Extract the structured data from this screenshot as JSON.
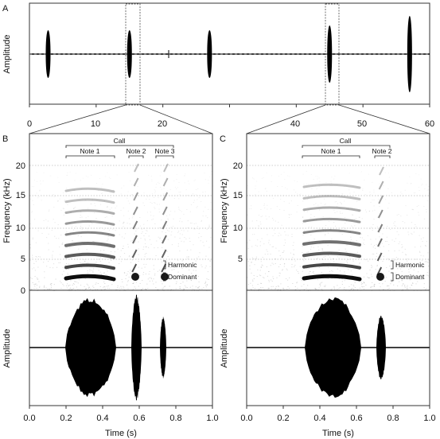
{
  "panels": {
    "A": {
      "letter": "A",
      "ylabel": "Amplitude",
      "x_ticks": [
        "0",
        "20",
        "40",
        "60"
      ],
      "x_ticks_minor": [
        "10",
        "30",
        "50"
      ],
      "xlim": [
        0,
        60
      ],
      "calls_at_s": [
        2.8,
        15.0,
        27.0,
        45.0,
        57.0
      ]
    },
    "B": {
      "letter": "B",
      "spectrogram": {
        "ylabel": "Frequency (kHz)",
        "y_ticks": [
          "20",
          "15",
          "10",
          "5",
          "0"
        ],
        "ylim": [
          0,
          22
        ],
        "annotations": {
          "call": "Call",
          "notes": [
            "Note 1",
            "Note 2",
            "Note 3"
          ],
          "harmonic": "Harmonic",
          "dominant": "Dominant"
        }
      },
      "waveform": {
        "ylabel": "Amplitude",
        "xlabel": "Time (s)",
        "x_ticks": [
          "0.0",
          "0.2",
          "0.4",
          "0.6",
          "0.8",
          "1.0"
        ]
      }
    },
    "C": {
      "letter": "C",
      "spectrogram": {
        "ylabel": "Frequency (kHz)",
        "y_ticks": [
          "20",
          "15",
          "10",
          "5"
        ],
        "annotations": {
          "call": "Call",
          "notes": [
            "Note 1",
            "Note 2"
          ],
          "harmonic": "Harmonic",
          "dominant": "Dominant"
        }
      },
      "waveform": {
        "ylabel": "Amplitude",
        "xlabel": "Time (s)",
        "x_ticks": [
          "0.0",
          "0.2",
          "0.4",
          "0.6",
          "0.8",
          "1.0"
        ]
      }
    }
  },
  "colors": {
    "ink": "#000000",
    "axis": "#333333",
    "grid": "#999999",
    "noise": "#cfcfcf"
  }
}
